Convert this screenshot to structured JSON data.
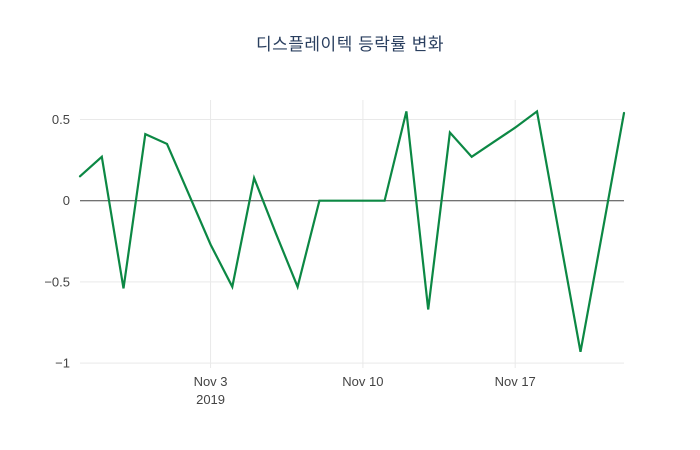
{
  "chart_data": {
    "type": "line",
    "title": "디스플레이텍 등락률 변화",
    "xlabel": "",
    "ylabel": "",
    "ylim": [
      -1.03,
      0.62
    ],
    "grid": true,
    "legend": "none",
    "colors": {
      "line": "#0c8844",
      "grid": "#e9e9e9",
      "zero_line": "#444444",
      "tick_text": "#444444",
      "title_text": "#2a3f5f",
      "background": "#ffffff"
    },
    "yticks": [
      {
        "v": 0.5,
        "label": "0.5"
      },
      {
        "v": 0,
        "label": "0"
      },
      {
        "v": -0.5,
        "label": "−0.5"
      },
      {
        "v": -1,
        "label": "−1"
      }
    ],
    "xticks": [
      {
        "i": 6,
        "label": "Nov 3",
        "sub": "2019"
      },
      {
        "i": 13,
        "label": "Nov 10",
        "sub": ""
      },
      {
        "i": 20,
        "label": "Nov 17",
        "sub": ""
      }
    ],
    "points": [
      {
        "date": "Oct 28",
        "value": 0.15
      },
      {
        "date": "Oct 29",
        "value": 0.27
      },
      {
        "date": "Oct 30",
        "value": -0.54
      },
      {
        "date": "Oct 31",
        "value": 0.41
      },
      {
        "date": "Nov 1",
        "value": 0.35
      },
      {
        "date": "Nov 2",
        "value": 0.04
      },
      {
        "date": "Nov 3",
        "value": -0.27
      },
      {
        "date": "Nov 4",
        "value": -0.53
      },
      {
        "date": "Nov 5",
        "value": 0.14
      },
      {
        "date": "Nov 6",
        "value": -0.2
      },
      {
        "date": "Nov 7",
        "value": -0.53
      },
      {
        "date": "Nov 8",
        "value": 0.0
      },
      {
        "date": "Nov 9",
        "value": 0.0
      },
      {
        "date": "Nov 10",
        "value": 0.0
      },
      {
        "date": "Nov 11",
        "value": 0.0
      },
      {
        "date": "Nov 12",
        "value": 0.55
      },
      {
        "date": "Nov 13",
        "value": -0.67
      },
      {
        "date": "Nov 14",
        "value": 0.42
      },
      {
        "date": "Nov 15",
        "value": 0.27
      },
      {
        "date": "Nov 16",
        "value": 0.36
      },
      {
        "date": "Nov 17",
        "value": 0.45
      },
      {
        "date": "Nov 18",
        "value": 0.55
      },
      {
        "date": "Nov 19",
        "value": -0.19
      },
      {
        "date": "Nov 20",
        "value": -0.93
      },
      {
        "date": "Nov 21",
        "value": -0.2
      },
      {
        "date": "Nov 22",
        "value": 0.54
      }
    ]
  }
}
